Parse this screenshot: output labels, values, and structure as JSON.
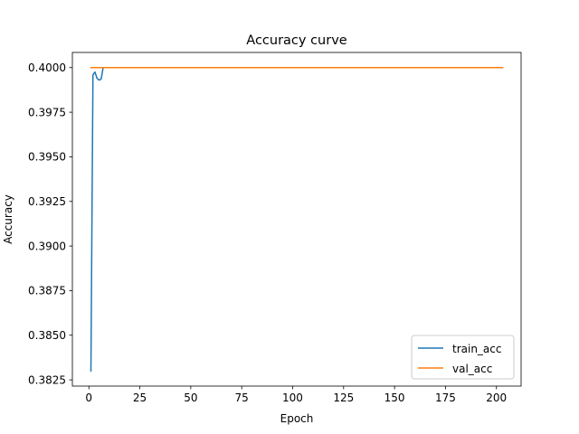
{
  "chart_data": {
    "type": "line",
    "title": "Accuracy curve",
    "xlabel": "Epoch",
    "ylabel": "Accuracy",
    "xlim": [
      -8.1,
      212.1
    ],
    "ylim": [
      0.38215,
      0.40085
    ],
    "xticks": [
      0,
      25,
      50,
      75,
      100,
      125,
      150,
      175,
      200
    ],
    "xtick_labels": [
      "0",
      "25",
      "50",
      "75",
      "100",
      "125",
      "150",
      "175",
      "200"
    ],
    "yticks": [
      0.3825,
      0.385,
      0.3875,
      0.39,
      0.3925,
      0.395,
      0.3975,
      0.4
    ],
    "ytick_labels": [
      "0.3825",
      "0.3850",
      "0.3875",
      "0.3900",
      "0.3925",
      "0.3950",
      "0.3975",
      "0.4000"
    ],
    "grid": false,
    "legend_position": "lower right",
    "series": [
      {
        "name": "train_acc",
        "color": "#1f77b4",
        "x": [
          1,
          2,
          3,
          4,
          5,
          6,
          7,
          8,
          203
        ],
        "y": [
          0.383,
          0.3996,
          0.39975,
          0.3994,
          0.3993,
          0.39935,
          0.4,
          0.4,
          0.4
        ]
      },
      {
        "name": "val_acc",
        "color": "#ff7f0e",
        "x": [
          1,
          203
        ],
        "y": [
          0.4,
          0.4
        ]
      }
    ]
  }
}
